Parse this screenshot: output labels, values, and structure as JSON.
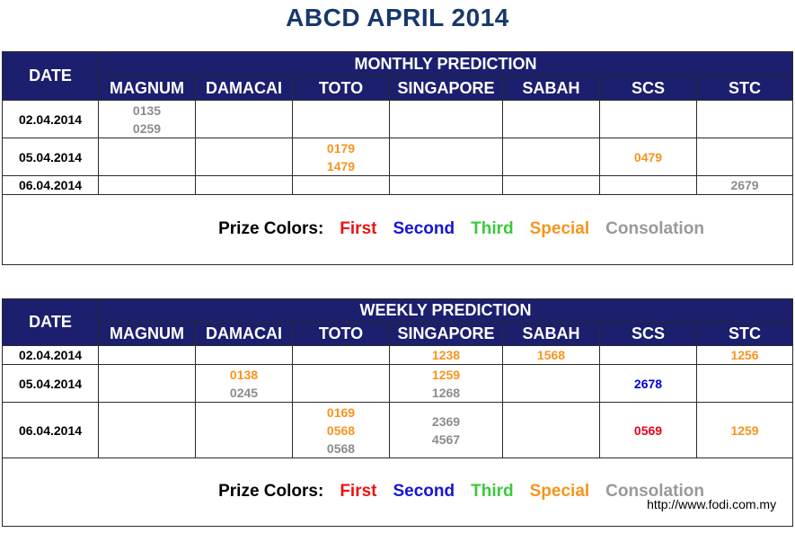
{
  "title": "ABCD APRIL 2014",
  "columns": [
    "MAGNUM",
    "DAMACAI",
    "TOTO",
    "SINGAPORE",
    "SABAH",
    "SCS",
    "STC"
  ],
  "date_header": "DATE",
  "legend": {
    "label": "Prize Colors:",
    "first": "First",
    "second": "Second",
    "third": "Third",
    "special": "Special",
    "consolation": "Consolation"
  },
  "prize_colors": {
    "first": "#ee1111",
    "second": "#1515d6",
    "third": "#3cc83c",
    "special": "#f7941d",
    "consolation": "#999999"
  },
  "monthly": {
    "heading": "MONTHLY PREDICTION",
    "rows": [
      {
        "date": "02.04.2014",
        "cells": [
          [
            {
              "v": "0135",
              "c": "consolation"
            },
            {
              "v": "0259",
              "c": "consolation"
            }
          ],
          [],
          [],
          [],
          [],
          [],
          []
        ]
      },
      {
        "date": "05.04.2014",
        "cells": [
          [],
          [],
          [
            {
              "v": "0179",
              "c": "special"
            },
            {
              "v": "1479",
              "c": "special"
            }
          ],
          [],
          [],
          [
            {
              "v": "0479",
              "c": "special"
            }
          ],
          []
        ]
      },
      {
        "date": "06.04.2014",
        "cells": [
          [],
          [],
          [],
          [],
          [],
          [],
          [
            {
              "v": "2679",
              "c": "consolation"
            }
          ]
        ]
      }
    ]
  },
  "weekly": {
    "heading": "WEEKLY PREDICTION",
    "rows": [
      {
        "date": "02.04.2014",
        "cells": [
          [],
          [],
          [],
          [
            {
              "v": "1238",
              "c": "special"
            }
          ],
          [
            {
              "v": "1568",
              "c": "special"
            }
          ],
          [],
          [
            {
              "v": "1256",
              "c": "special"
            }
          ]
        ]
      },
      {
        "date": "05.04.2014",
        "cells": [
          [],
          [
            {
              "v": "0138",
              "c": "special"
            },
            {
              "v": "0245",
              "c": "consolation"
            }
          ],
          [],
          [
            {
              "v": "1259",
              "c": "special"
            },
            {
              "v": "1268",
              "c": "consolation"
            }
          ],
          [],
          [
            {
              "v": "2678",
              "c": "second"
            }
          ],
          []
        ]
      },
      {
        "date": "06.04.2014",
        "cells": [
          [],
          [],
          [
            {
              "v": "0169",
              "c": "special"
            },
            {
              "v": "0568",
              "c": "special"
            },
            {
              "v": "0568",
              "c": "consolation"
            }
          ],
          [
            {
              "v": "2369",
              "c": "consolation"
            },
            {
              "v": "4567",
              "c": "consolation"
            }
          ],
          [],
          [
            {
              "v": "0569",
              "c": "first"
            }
          ],
          [
            {
              "v": "1259",
              "c": "special"
            }
          ]
        ]
      }
    ]
  },
  "footer_url": "http://www.fodi.com.my"
}
